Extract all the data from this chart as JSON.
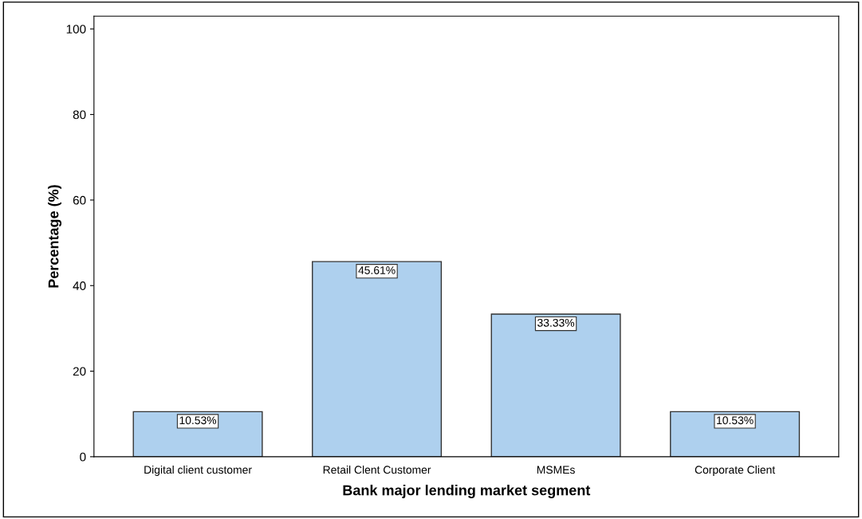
{
  "chart_data": {
    "type": "bar",
    "xlabel": "Bank major lending market segment",
    "ylabel": "Percentage (%)",
    "categories": [
      "Digital client customer",
      "Retail Clent Customer",
      "MSMEs",
      "Corporate Client"
    ],
    "values": [
      10.53,
      45.61,
      33.33,
      10.53
    ],
    "value_labels": [
      "10.53%",
      "45.61%",
      "33.33%",
      "10.53%"
    ],
    "color": "#aed0ee",
    "ylim": [
      0,
      103
    ],
    "yticks": [
      0,
      20,
      40,
      60,
      80,
      100
    ],
    "grid": false
  }
}
